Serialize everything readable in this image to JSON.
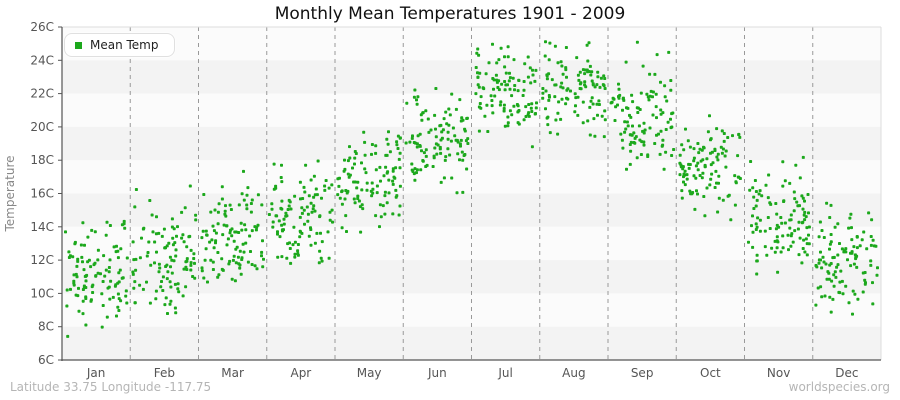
{
  "title": "Monthly Mean Temperatures 1901 - 2009",
  "legend": {
    "label": "Mean Temp"
  },
  "footer": {
    "left": "Latitude 33.75 Longitude -117.75",
    "right": "worldspecies.org"
  },
  "colors": {
    "point": "#1ca81c",
    "band_light": "#fbfbfb",
    "band_dark": "#f3f3f3",
    "gridline": "#999999",
    "axis": "#545454",
    "border_light": "#dddddd",
    "tick_label": "#555555",
    "axis_title": "#888888",
    "title_text": "#111111",
    "footer_text": "#b5b5b5"
  },
  "chart_data": {
    "type": "scatter",
    "title": "Monthly Mean Temperatures 1901 - 2009",
    "xlabel": "",
    "ylabel": "Temperature",
    "x_categories": [
      "Jan",
      "Feb",
      "Mar",
      "Apr",
      "May",
      "Jun",
      "Jul",
      "Aug",
      "Sep",
      "Oct",
      "Nov",
      "Dec"
    ],
    "y_ticks": [
      "6C",
      "8C",
      "10C",
      "12C",
      "14C",
      "16C",
      "18C",
      "20C",
      "22C",
      "24C",
      "26C"
    ],
    "ylim": [
      6,
      26
    ],
    "grid": "dashed vertical lines at month boundaries; alternating 2C horizontal background bands",
    "legend_position": "top-left",
    "series": [
      {
        "name": "Mean Temp",
        "color": "#1ca81c",
        "marker": "square",
        "years_range": "1901-2009",
        "points_per_month": 109,
        "monthly_stats": [
          {
            "month": "Jan",
            "mean": 11.4,
            "sd": 1.5,
            "min": 7.0,
            "max": 14.4
          },
          {
            "month": "Feb",
            "mean": 12.1,
            "sd": 1.6,
            "min": 8.4,
            "max": 16.5
          },
          {
            "month": "Mar",
            "mean": 13.0,
            "sd": 1.5,
            "min": 10.0,
            "max": 17.8
          },
          {
            "month": "Apr",
            "mean": 14.6,
            "sd": 1.4,
            "min": 11.8,
            "max": 19.5
          },
          {
            "month": "May",
            "mean": 16.7,
            "sd": 1.4,
            "min": 13.6,
            "max": 20.4
          },
          {
            "month": "Jun",
            "mean": 19.2,
            "sd": 1.4,
            "min": 15.9,
            "max": 23.0
          },
          {
            "month": "Jul",
            "mean": 21.9,
            "sd": 1.4,
            "min": 18.6,
            "max": 25.8
          },
          {
            "month": "Aug",
            "mean": 22.3,
            "sd": 1.3,
            "min": 19.3,
            "max": 25.8
          },
          {
            "month": "Sep",
            "mean": 20.8,
            "sd": 1.6,
            "min": 17.2,
            "max": 25.4
          },
          {
            "month": "Oct",
            "mean": 17.6,
            "sd": 1.4,
            "min": 14.1,
            "max": 21.0
          },
          {
            "month": "Nov",
            "mean": 14.4,
            "sd": 1.6,
            "min": 10.9,
            "max": 18.6
          },
          {
            "month": "Dec",
            "mean": 11.9,
            "sd": 1.5,
            "min": 8.3,
            "max": 15.5
          }
        ]
      }
    ]
  }
}
